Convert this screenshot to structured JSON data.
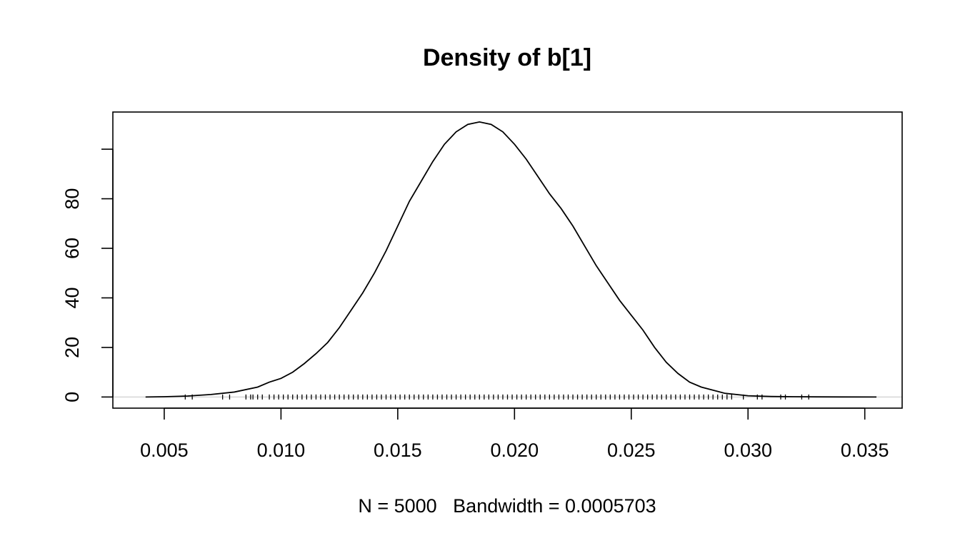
{
  "chart_data": {
    "type": "line",
    "title": "Density of b[1]",
    "xlabel": "N = 5000   Bandwidth = 0.0005703",
    "ylabel": "",
    "xlim": [
      0.0028,
      0.0366
    ],
    "ylim": [
      -4.5,
      115
    ],
    "x_ticks": [
      0.005,
      0.01,
      0.015,
      0.02,
      0.025,
      0.03,
      0.035
    ],
    "x_tick_labels": [
      "0.005",
      "0.010",
      "0.015",
      "0.020",
      "0.025",
      "0.030",
      "0.035"
    ],
    "y_ticks": [
      0,
      20,
      40,
      60,
      80,
      100
    ],
    "y_tick_labels": [
      "0",
      "20",
      "40",
      "60",
      "80",
      ""
    ],
    "zero_line": true,
    "series": [
      {
        "x": [
          0.0042,
          0.005,
          0.006,
          0.007,
          0.008,
          0.009,
          0.0095,
          0.01,
          0.0105,
          0.011,
          0.0115,
          0.012,
          0.0125,
          0.013,
          0.0135,
          0.014,
          0.0145,
          0.015,
          0.0155,
          0.016,
          0.0165,
          0.017,
          0.0175,
          0.018,
          0.0185,
          0.019,
          0.0195,
          0.02,
          0.0205,
          0.021,
          0.0215,
          0.022,
          0.0225,
          0.023,
          0.0235,
          0.024,
          0.0245,
          0.025,
          0.0255,
          0.026,
          0.0265,
          0.027,
          0.0275,
          0.028,
          0.029,
          0.03,
          0.031,
          0.032,
          0.033,
          0.034,
          0.0355
        ],
        "y": [
          0,
          0.1,
          0.4,
          1,
          2,
          4,
          6,
          7.5,
          10,
          13.5,
          17.5,
          22,
          28,
          35,
          42,
          50,
          59,
          69,
          79,
          87,
          95,
          102,
          107,
          110,
          111,
          110,
          107,
          102,
          96,
          89,
          82,
          76,
          69,
          61,
          53,
          46,
          39,
          33,
          27,
          20,
          14,
          9.5,
          6,
          4,
          1.5,
          0.5,
          0.2,
          0.1,
          0.05,
          0.02,
          0
        ]
      }
    ],
    "rug": [
      0.0059,
      0.0062,
      0.0075,
      0.0078,
      0.0085,
      0.0087,
      0.0088,
      0.009,
      0.0092,
      0.0095,
      0.0097,
      0.0099,
      0.0101,
      0.0103,
      0.0105,
      0.0107,
      0.0109,
      0.0111,
      0.0113,
      0.0115,
      0.0117,
      0.0119,
      0.0121,
      0.0123,
      0.0125,
      0.0127,
      0.0129,
      0.0131,
      0.0133,
      0.0135,
      0.0137,
      0.0139,
      0.0141,
      0.0143,
      0.0145,
      0.0147,
      0.0149,
      0.0151,
      0.0153,
      0.0155,
      0.0157,
      0.0159,
      0.0161,
      0.0163,
      0.0165,
      0.0167,
      0.0169,
      0.0171,
      0.0173,
      0.0175,
      0.0177,
      0.0179,
      0.0181,
      0.0183,
      0.0185,
      0.0187,
      0.0189,
      0.0191,
      0.0193,
      0.0195,
      0.0197,
      0.0199,
      0.0201,
      0.0203,
      0.0205,
      0.0207,
      0.0209,
      0.0211,
      0.0213,
      0.0215,
      0.0217,
      0.0219,
      0.0221,
      0.0223,
      0.0225,
      0.0227,
      0.0229,
      0.0231,
      0.0233,
      0.0235,
      0.0237,
      0.0239,
      0.0241,
      0.0243,
      0.0245,
      0.0247,
      0.0249,
      0.0251,
      0.0253,
      0.0255,
      0.0257,
      0.0259,
      0.0261,
      0.0263,
      0.0265,
      0.0267,
      0.0269,
      0.0271,
      0.0273,
      0.0275,
      0.0277,
      0.0279,
      0.0281,
      0.0283,
      0.0285,
      0.0287,
      0.0289,
      0.0291,
      0.0293,
      0.0298,
      0.0304,
      0.0306,
      0.0314,
      0.0316,
      0.0323,
      0.0326
    ]
  }
}
